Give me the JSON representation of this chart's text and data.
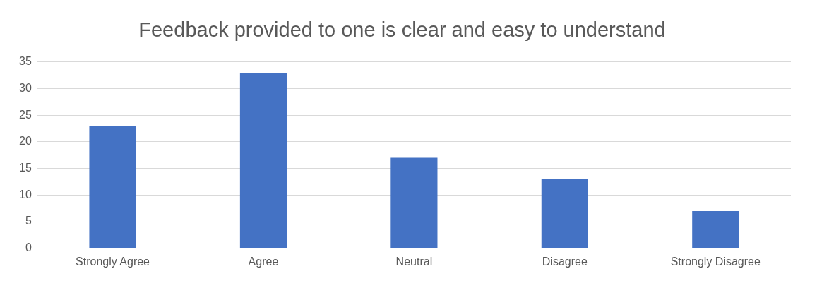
{
  "chart_data": {
    "type": "bar",
    "title": "Feedback provided to one is clear and easy to understand",
    "categories": [
      "Strongly Agree",
      "Agree",
      "Neutral",
      "Disagree",
      "Strongly Disagree"
    ],
    "values": [
      23,
      33,
      17,
      13,
      7
    ],
    "color": "#4472c4",
    "ylim": [
      0,
      35
    ],
    "yticks": [
      0,
      5,
      10,
      15,
      20,
      25,
      30,
      35
    ],
    "grid": "y",
    "legend": false
  }
}
